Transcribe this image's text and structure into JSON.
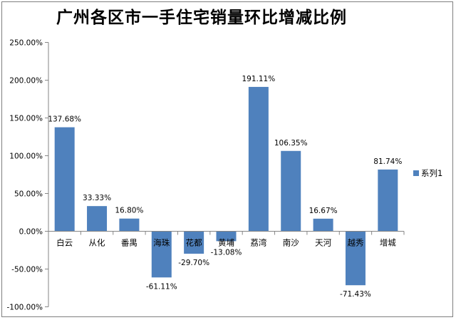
{
  "chart_data": {
    "type": "bar",
    "title": "广州各区市一手住宅销量环比增减比例",
    "categories": [
      "白云",
      "从化",
      "番禺",
      "海珠",
      "花都",
      "黄埔",
      "荔湾",
      "南沙",
      "天河",
      "越秀",
      "增城"
    ],
    "series": [
      {
        "name": "系列1",
        "values": [
          137.68,
          33.33,
          16.8,
          -61.11,
          -29.7,
          -13.08,
          191.11,
          106.35,
          16.67,
          -71.43,
          81.74
        ],
        "labels": [
          "137.68%",
          "33.33%",
          "16.80%",
          "-61.11%",
          "-29.70%",
          "-13.08%",
          "191.11%",
          "106.35%",
          "16.67%",
          "-71.43%",
          "81.74%"
        ],
        "color": "#4f81bd"
      }
    ],
    "y_ticks": [
      250,
      200,
      150,
      100,
      50,
      0,
      -50,
      -100
    ],
    "y_tick_labels": [
      "250.00%",
      "200.00%",
      "150.00%",
      "100.00%",
      "50.00%",
      "0.00%",
      "-50.00%",
      "-100.00%"
    ],
    "ylim": [
      -100,
      250
    ],
    "xlabel": "",
    "ylabel": "",
    "grid": false,
    "legend": "right"
  }
}
